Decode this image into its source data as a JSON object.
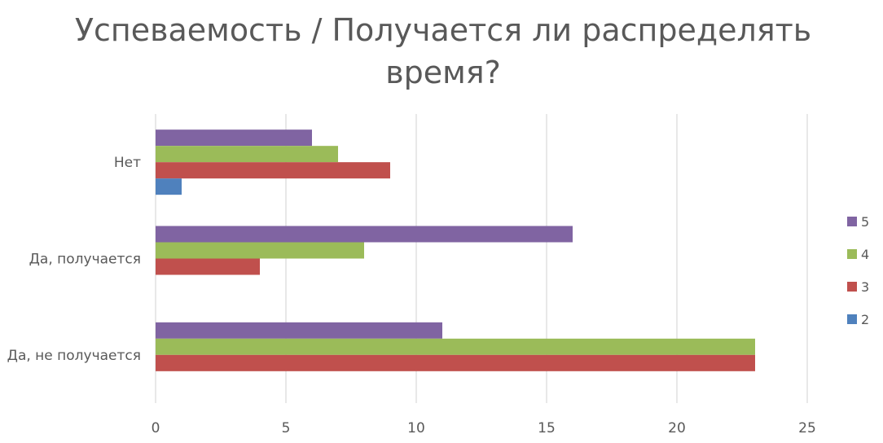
{
  "chart_data": {
    "type": "bar",
    "orientation": "horizontal",
    "title": "Успеваемость / Получается ли распределять время?",
    "title_lines": [
      "Успеваемость / Получается ли распределять",
      "время?"
    ],
    "categories": [
      "Нет",
      "Да, получается",
      "Да, не получается"
    ],
    "series": [
      {
        "name": "5",
        "color": "#8064A2",
        "values": [
          6,
          16,
          11
        ]
      },
      {
        "name": "4",
        "color": "#9BBB59",
        "values": [
          7,
          8,
          23
        ]
      },
      {
        "name": "3",
        "color": "#C0504D",
        "values": [
          9,
          4,
          23
        ]
      },
      {
        "name": "2",
        "color": "#4F81BD",
        "values": [
          1,
          0,
          0
        ]
      }
    ],
    "xlim": [
      0,
      25
    ],
    "xticks": [
      "0",
      "5",
      "10",
      "15",
      "20",
      "25"
    ],
    "grid": true,
    "legend_position": "right"
  }
}
